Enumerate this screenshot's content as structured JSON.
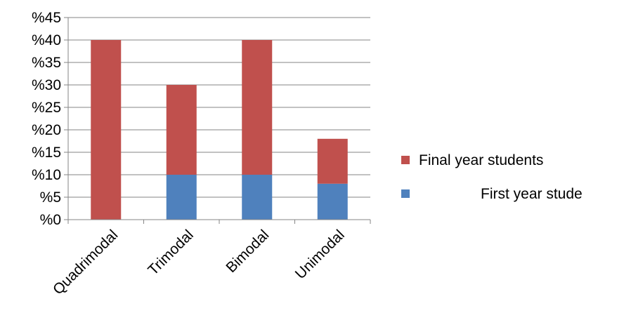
{
  "chart_data": {
    "type": "bar",
    "stacked": true,
    "categories": [
      "Quadrimodal",
      "Trimodal",
      "Bimodal",
      "Unimodal"
    ],
    "series": [
      {
        "name": "First year stude",
        "color": "#4F81BD",
        "values": [
          0,
          10,
          10,
          8
        ]
      },
      {
        "name": "Final year students",
        "color": "#C0504D",
        "values": [
          40,
          20,
          30,
          10
        ]
      }
    ],
    "y_ticks": [
      "%0",
      "%5",
      "%10",
      "%15",
      "%20",
      "%25",
      "%30",
      "%35",
      "%40",
      "%45"
    ],
    "ylim": [
      0,
      45
    ],
    "grid": true,
    "legend_position": "right",
    "title": "",
    "xlabel": "",
    "ylabel": ""
  }
}
